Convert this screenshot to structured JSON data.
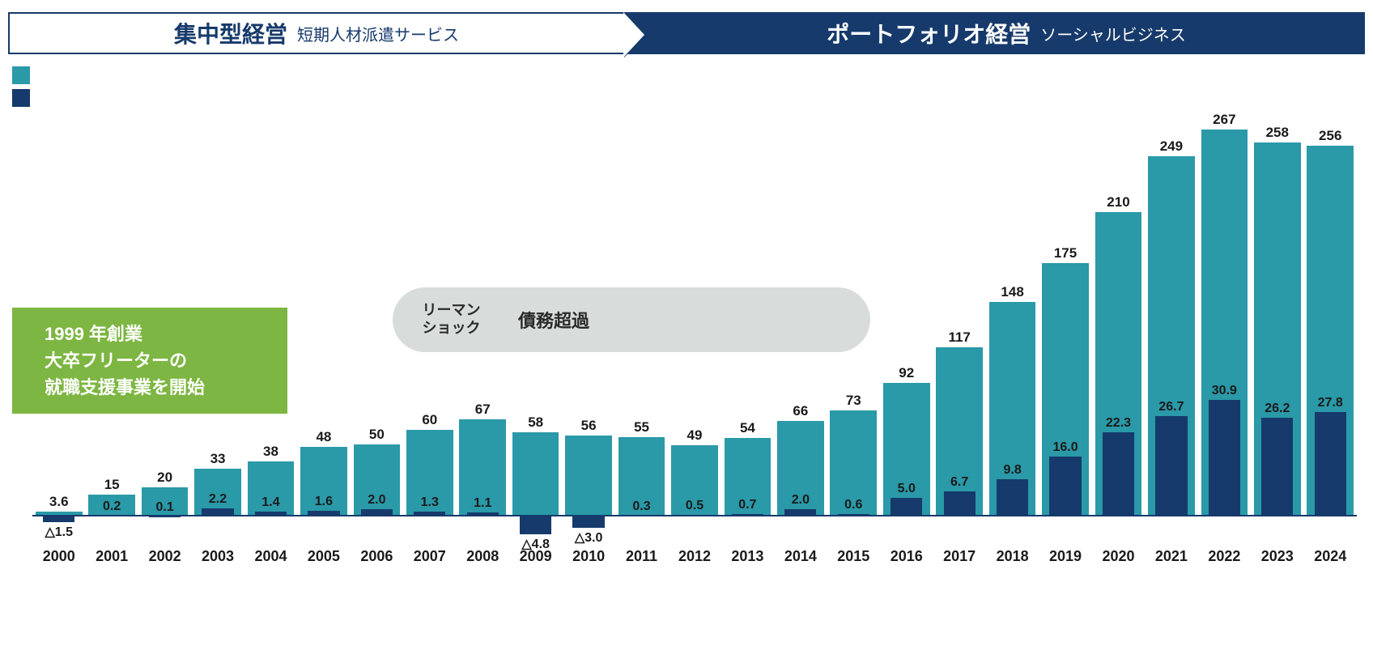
{
  "header": {
    "left_main": "集中型経営",
    "left_sub": "短期人材派遣サービス",
    "right_main": "ポートフォリオ経営",
    "right_sub": "ソーシャルビジネス"
  },
  "legend": {
    "color_revenue": "#2a99a8",
    "color_profit": "#163a6b"
  },
  "callout_founding": {
    "l1": "1999 年創業",
    "l2": "大卒フリーターの",
    "l3": "就職支援事業を開始",
    "bg": "#7db642"
  },
  "bubble": {
    "left_l1": "リーマン",
    "left_l2": "ショック",
    "right": "債務超過",
    "bg": "#d8dddc"
  },
  "chart": {
    "type": "grouped-bar",
    "revenue_color": "#2a99a8",
    "profit_color": "#163a6b",
    "profit_neg_color": "#163a6b",
    "baseline_color": "#163a6b",
    "label_color": "#1a1a1a",
    "x_label_fontsize": 18,
    "bar_label_fontsize": 17,
    "revenue_max": 270,
    "profit_scale_to_revenue": 2.6,
    "years": [
      "2000",
      "2001",
      "2002",
      "2003",
      "2004",
      "2005",
      "2006",
      "2007",
      "2008",
      "2009",
      "2010",
      "2011",
      "2012",
      "2013",
      "2014",
      "2015",
      "2016",
      "2017",
      "2018",
      "2019",
      "2020",
      "2021",
      "2022",
      "2023",
      "2024"
    ],
    "revenue": [
      3.6,
      15,
      20,
      33,
      38,
      48,
      50,
      60,
      67,
      58,
      56,
      55,
      49,
      54,
      66,
      73,
      92,
      117,
      148,
      175,
      210,
      249,
      267,
      258,
      256
    ],
    "profit": [
      -1.5,
      0.2,
      0.1,
      2.2,
      1.4,
      1.6,
      2.0,
      1.3,
      1.1,
      -4.8,
      -3.0,
      0.3,
      0.5,
      0.7,
      2.0,
      0.6,
      5.0,
      6.7,
      9.8,
      16.0,
      22.3,
      26.7,
      30.9,
      26.2,
      27.8
    ],
    "profit_labels": [
      "△1.5",
      "0.2",
      "0.1",
      "2.2",
      "1.4",
      "1.6",
      "2.0",
      "1.3",
      "1.1",
      "△4.8",
      "△3.0",
      "0.3",
      "0.5",
      "0.7",
      "2.0",
      "0.6",
      "5.0",
      "6.7",
      "9.8",
      "16.0",
      "22.3",
      "26.7",
      "30.9",
      "26.2",
      "27.8"
    ],
    "revenue_labels": [
      "3.6",
      "15",
      "20",
      "33",
      "38",
      "48",
      "50",
      "60",
      "67",
      "58",
      "56",
      "55",
      "49",
      "54",
      "66",
      "73",
      "92",
      "117",
      "148",
      "175",
      "210",
      "249",
      "267",
      "258",
      "256"
    ]
  }
}
